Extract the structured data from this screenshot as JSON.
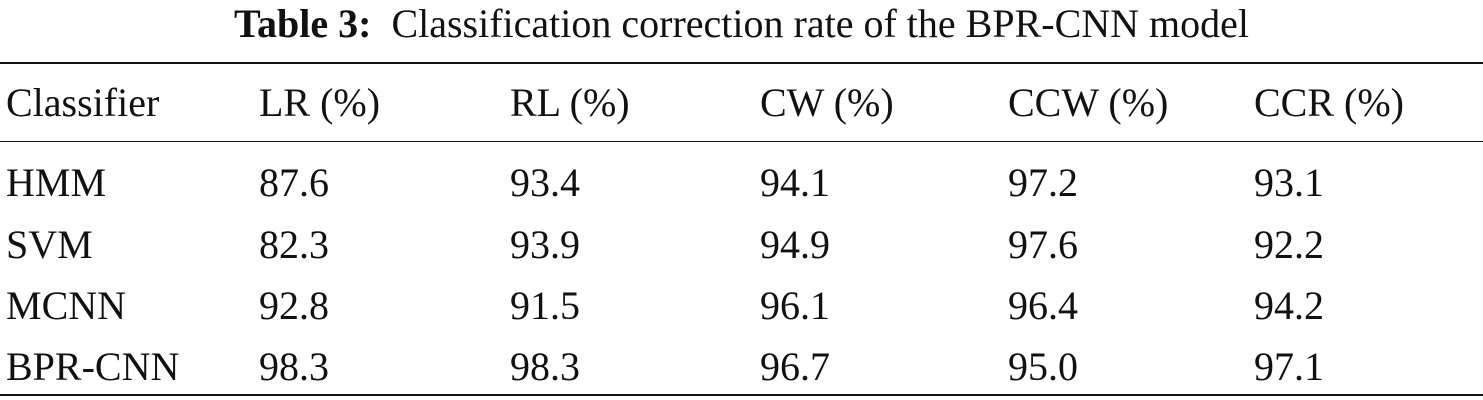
{
  "caption": {
    "label": "Table 3:",
    "text": "Classification correction rate of the BPR-CNN model"
  },
  "table": {
    "headers": [
      "Classifier",
      "LR (%)",
      "RL (%)",
      "CW (%)",
      "CCW (%)",
      "CCR (%)"
    ],
    "rows": [
      [
        "HMM",
        "87.6",
        "93.4",
        "94.1",
        "97.2",
        "93.1"
      ],
      [
        "SVM",
        "82.3",
        "93.9",
        "94.9",
        "97.6",
        "92.2"
      ],
      [
        "MCNN",
        "92.8",
        "91.5",
        "96.1",
        "96.4",
        "94.2"
      ],
      [
        "BPR-CNN",
        "98.3",
        "98.3",
        "96.7",
        "95.0",
        "97.1"
      ]
    ]
  }
}
